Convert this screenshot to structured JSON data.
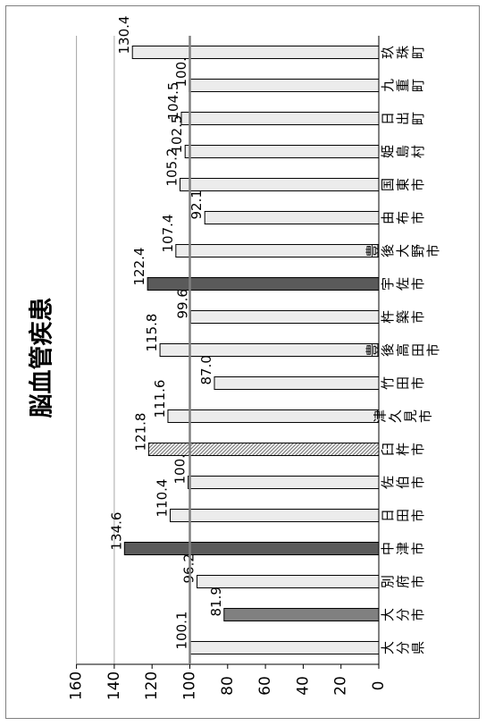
{
  "chart_data": {
    "type": "bar",
    "orientation": "horizontal",
    "title": "脳血管疾患",
    "categories": [
      "大分県",
      "大分市",
      "別府市",
      "中津市",
      "日田市",
      "佐伯市",
      "臼杵市",
      "津久見市",
      "竹田市",
      "豊後高田市",
      "杵築市",
      "宇佐市",
      "豊後大野市",
      "由布市",
      "国東市",
      "姫島村",
      "日出町",
      "九重町",
      "玖珠町"
    ],
    "values": [
      100.1,
      81.9,
      96.2,
      134.6,
      110.4,
      100.9,
      121.8,
      111.6,
      87.0,
      115.8,
      99.6,
      122.4,
      107.4,
      92.1,
      105.2,
      102.5,
      104.5,
      100.3,
      130.4
    ],
    "value_labels": [
      "100.1",
      "81.9",
      "96.2",
      "134.6",
      "110.4",
      "100.9",
      "121.8",
      "111.6",
      "87.0",
      "115.8",
      "99.6",
      "122.4",
      "107.4",
      "92.1",
      "105.2",
      "102.5",
      "104.5",
      "100.3",
      "130.4"
    ],
    "bar_styles": [
      "light",
      "medium",
      "light",
      "dark",
      "light",
      "light",
      "hatched",
      "light",
      "light",
      "light",
      "light",
      "dark",
      "light",
      "light",
      "light",
      "light",
      "light",
      "light",
      "light"
    ],
    "colors": {
      "light": "#ececec",
      "medium": "#808080",
      "dark": "#5a5a5a",
      "hatched_fg": "#808080",
      "hatched_bg": "#ffffff",
      "border": "#000000",
      "grid": "#a6a6a6",
      "reference_line": "#808080"
    },
    "xlim": [
      0,
      160
    ],
    "ticks": [
      0,
      20,
      40,
      60,
      80,
      100,
      120,
      140,
      160
    ],
    "gridlines": [
      140,
      160
    ],
    "reference_line": 100,
    "xlabel": "",
    "ylabel": ""
  }
}
